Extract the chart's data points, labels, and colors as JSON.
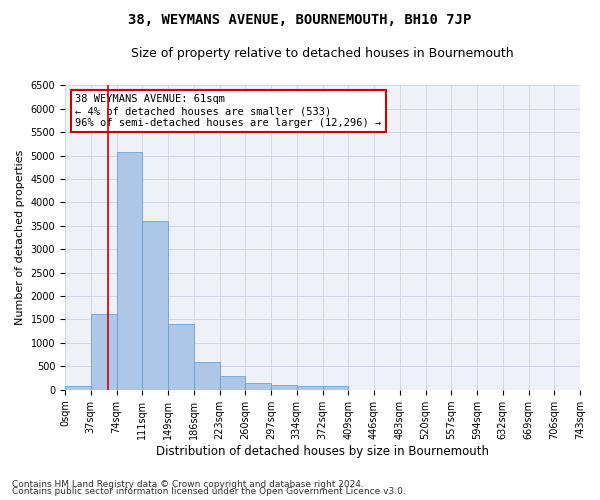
{
  "title": "38, WEYMANS AVENUE, BOURNEMOUTH, BH10 7JP",
  "subtitle": "Size of property relative to detached houses in Bournemouth",
  "xlabel": "Distribution of detached houses by size in Bournemouth",
  "ylabel": "Number of detached properties",
  "bar_values": [
    75,
    1625,
    5075,
    3600,
    1400,
    600,
    300,
    150,
    100,
    75,
    75,
    0,
    0,
    0,
    0,
    0,
    0,
    0,
    0,
    0
  ],
  "x_tick_labels": [
    "0sqm",
    "37sqm",
    "74sqm",
    "111sqm",
    "149sqm",
    "186sqm",
    "223sqm",
    "260sqm",
    "297sqm",
    "334sqm",
    "372sqm",
    "409sqm",
    "446sqm",
    "483sqm",
    "520sqm",
    "557sqm",
    "594sqm",
    "632sqm",
    "669sqm",
    "706sqm",
    "743sqm"
  ],
  "bar_color": "#aec6e8",
  "bar_edge_color": "#5a9ad4",
  "grid_color": "#d0d8e8",
  "background_color": "#eef2f8",
  "red_line_x": 1.65,
  "annotation_text": "38 WEYMANS AVENUE: 61sqm\n← 4% of detached houses are smaller (533)\n96% of semi-detached houses are larger (12,296) →",
  "annotation_box_color": "#ffffff",
  "annotation_box_edge_color": "#cc0000",
  "ylim": [
    0,
    6500
  ],
  "yticks": [
    0,
    500,
    1000,
    1500,
    2000,
    2500,
    3000,
    3500,
    4000,
    4500,
    5000,
    5500,
    6000,
    6500
  ],
  "footer1": "Contains HM Land Registry data © Crown copyright and database right 2024.",
  "footer2": "Contains public sector information licensed under the Open Government Licence v3.0.",
  "title_fontsize": 10,
  "subtitle_fontsize": 9,
  "xlabel_fontsize": 8.5,
  "ylabel_fontsize": 8,
  "tick_fontsize": 7,
  "annotation_fontsize": 7.5,
  "footer_fontsize": 6.5
}
